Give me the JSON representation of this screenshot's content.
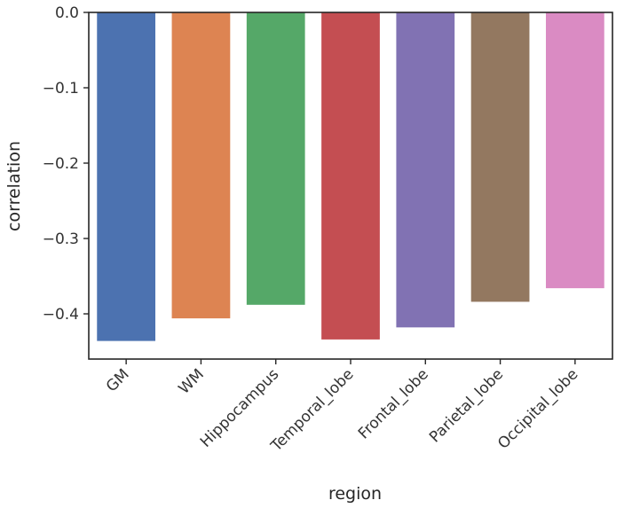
{
  "chart_data": {
    "type": "bar",
    "categories": [
      "GM",
      "WM",
      "Hippocampus",
      "Temporal_lobe",
      "Frontal_lobe",
      "Parietal_lobe",
      "Occipital_lobe"
    ],
    "values": [
      -0.436,
      -0.406,
      -0.388,
      -0.434,
      -0.418,
      -0.384,
      -0.366
    ],
    "colors": [
      "#4c72b0",
      "#dd8452",
      "#55a868",
      "#c44e52",
      "#8172b3",
      "#937860",
      "#da8bc3"
    ],
    "xlabel": "region",
    "ylabel": "correlation",
    "ylim": [
      -0.46,
      0.0
    ],
    "yticks": [
      0.0,
      -0.1,
      -0.2,
      -0.3,
      -0.4
    ],
    "ytick_labels": [
      "0.0",
      "−0.1",
      "−0.2",
      "−0.3",
      "−0.4"
    ],
    "grid": false,
    "legend": "none"
  }
}
